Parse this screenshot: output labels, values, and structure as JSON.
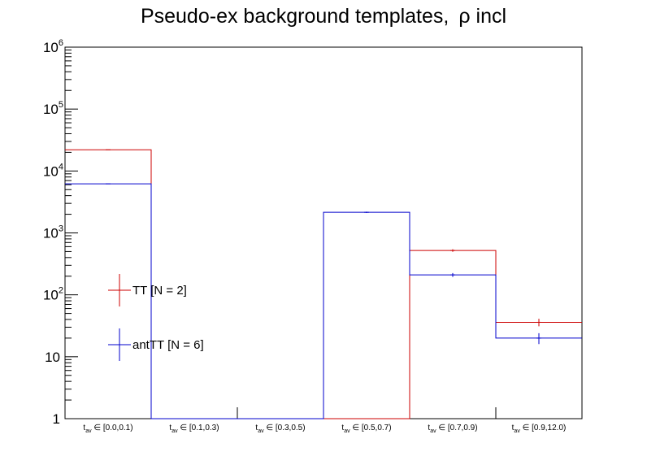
{
  "title": {
    "main": "Pseudo-ex background templates,",
    "symbol": "ρ incl"
  },
  "chart_data": {
    "type": "histogram",
    "title": "Pseudo-ex background templates, ρ incl",
    "yscale": "log",
    "ylim": [
      1,
      1000000
    ],
    "y_tick_labels": [
      {
        "value": 1,
        "base": "1",
        "exp": ""
      },
      {
        "value": 10,
        "base": "10",
        "exp": ""
      },
      {
        "value": 100,
        "base": "10",
        "exp": "2"
      },
      {
        "value": 1000,
        "base": "10",
        "exp": "3"
      },
      {
        "value": 10000,
        "base": "10",
        "exp": "4"
      },
      {
        "value": 100000,
        "base": "10",
        "exp": "5"
      },
      {
        "value": 1000000,
        "base": "10",
        "exp": "6"
      }
    ],
    "categories": [
      {
        "var": "t",
        "sub": "av",
        "range": "∈ [0.0,0.1)"
      },
      {
        "var": "t",
        "sub": "av",
        "range": "∈ [0.1,0.3)"
      },
      {
        "var": "t",
        "sub": "av",
        "range": "∈ [0.3,0.5)"
      },
      {
        "var": "t",
        "sub": "av",
        "range": "∈ [0.5,0.7)"
      },
      {
        "var": "t",
        "sub": "av",
        "range": "∈ [0.7,0.9)"
      },
      {
        "var": "t",
        "sub": "av",
        "range": "∈ [0.9,12.0)"
      }
    ],
    "series": [
      {
        "name": "TT [N = 2]",
        "color": "#cc0000",
        "values": [
          22000,
          0,
          0,
          0,
          520,
          36
        ],
        "errors": [
          0,
          0,
          0,
          0,
          25,
          5
        ]
      },
      {
        "name": "antTT [N = 6]",
        "color": "#0000cc",
        "values": [
          6200,
          0,
          0,
          2150,
          210,
          20
        ],
        "errors": [
          0,
          0,
          0,
          50,
          15,
          4
        ]
      }
    ],
    "legend_position": "left-center"
  }
}
